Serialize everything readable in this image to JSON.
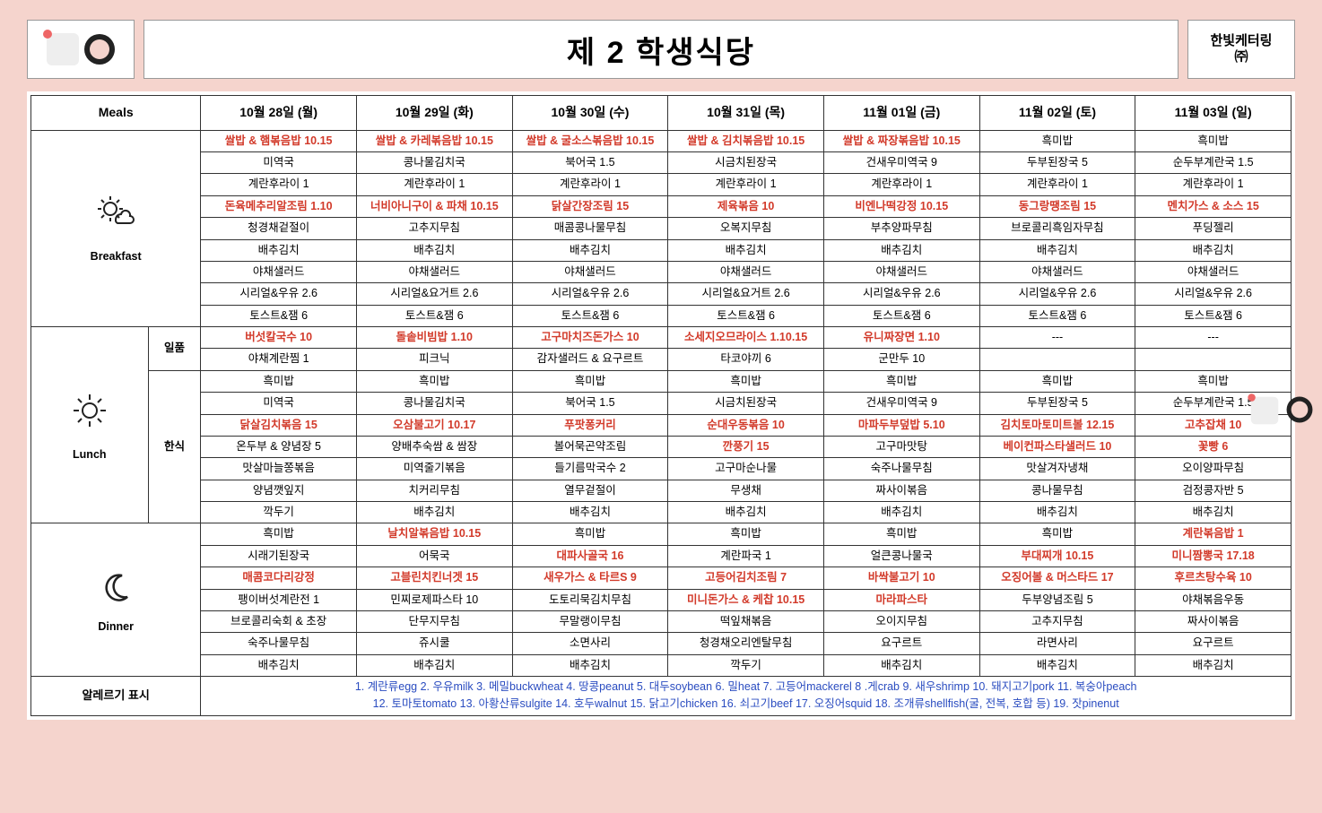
{
  "header": {
    "title": "제 2 학생식당",
    "brand_line1": "한빛케터링",
    "brand_line2": "㈜"
  },
  "columns": {
    "meals": "Meals",
    "days": [
      "10월 28일 (월)",
      "10월 29일 (화)",
      "10월 30일 (수)",
      "10월 31일 (목)",
      "11월 01일 (금)",
      "11월 02일 (토)",
      "11월 03일 (일)"
    ]
  },
  "meal_labels": {
    "breakfast": "Breakfast",
    "lunch": "Lunch",
    "dinner": "Dinner",
    "ilpum": "일품",
    "hansik": "한식",
    "allergy": "알레르기 표시"
  },
  "breakfast": [
    [
      {
        "t": "쌀밥 & 햄볶음밥 10.15",
        "hl": true
      },
      {
        "t": "쌀밥 & 카레볶음밥 10.15",
        "hl": true
      },
      {
        "t": "쌀밥 & 굴소스볶음밥 10.15",
        "hl": true
      },
      {
        "t": "쌀밥 & 김치볶음밥 10.15",
        "hl": true
      },
      {
        "t": "쌀밥 & 짜장볶음밥 10.15",
        "hl": true
      },
      {
        "t": "흑미밥"
      },
      {
        "t": "흑미밥"
      }
    ],
    [
      {
        "t": "미역국"
      },
      {
        "t": "콩나물김치국"
      },
      {
        "t": "북어국 1.5"
      },
      {
        "t": "시금치된장국"
      },
      {
        "t": "건새우미역국 9"
      },
      {
        "t": "두부된장국 5"
      },
      {
        "t": "순두부계란국 1.5"
      }
    ],
    [
      {
        "t": "계란후라이 1"
      },
      {
        "t": "계란후라이 1"
      },
      {
        "t": "계란후라이 1"
      },
      {
        "t": "계란후라이 1"
      },
      {
        "t": "계란후라이 1"
      },
      {
        "t": "계란후라이 1"
      },
      {
        "t": "계란후라이 1"
      }
    ],
    [
      {
        "t": "돈육메추리알조림 1.10",
        "hl": true
      },
      {
        "t": "너비아니구이 & 파채 10.15",
        "hl": true
      },
      {
        "t": "닭살간장조림 15",
        "hl": true
      },
      {
        "t": "제육볶음 10",
        "hl": true
      },
      {
        "t": "비엔나떡강정 10.15",
        "hl": true
      },
      {
        "t": "동그랑땡조림 15",
        "hl": true
      },
      {
        "t": "멘치가스 & 소스 15",
        "hl": true
      }
    ],
    [
      {
        "t": "청경채겉절이"
      },
      {
        "t": "고추지무침"
      },
      {
        "t": "매콤콩나물무침"
      },
      {
        "t": "오복지무침"
      },
      {
        "t": "부추양파무침"
      },
      {
        "t": "브로콜리흑임자무침"
      },
      {
        "t": "푸딩젤리"
      }
    ],
    [
      {
        "t": "배추김치"
      },
      {
        "t": "배추김치"
      },
      {
        "t": "배추김치"
      },
      {
        "t": "배추김치"
      },
      {
        "t": "배추김치"
      },
      {
        "t": "배추김치"
      },
      {
        "t": "배추김치"
      }
    ],
    [
      {
        "t": "야채샐러드"
      },
      {
        "t": "야채샐러드"
      },
      {
        "t": "야채샐러드"
      },
      {
        "t": "야채샐러드"
      },
      {
        "t": "야채샐러드"
      },
      {
        "t": "야채샐러드"
      },
      {
        "t": "야채샐러드"
      }
    ],
    [
      {
        "t": "시리얼&우유 2.6"
      },
      {
        "t": "시리얼&요거트 2.6"
      },
      {
        "t": "시리얼&우유 2.6"
      },
      {
        "t": "시리얼&요거트 2.6"
      },
      {
        "t": "시리얼&우유 2.6"
      },
      {
        "t": "시리얼&우유 2.6"
      },
      {
        "t": "시리얼&우유 2.6"
      }
    ],
    [
      {
        "t": "토스트&잼 6"
      },
      {
        "t": "토스트&잼 6"
      },
      {
        "t": "토스트&잼 6"
      },
      {
        "t": "토스트&잼 6"
      },
      {
        "t": "토스트&잼 6"
      },
      {
        "t": "토스트&잼 6"
      },
      {
        "t": "토스트&잼 6"
      }
    ]
  ],
  "lunch_ilpum": [
    [
      {
        "t": "버섯칼국수 10",
        "hl": true
      },
      {
        "t": "돌솥비빔밥 1.10",
        "hl": true
      },
      {
        "t": "고구마치즈돈가스 10",
        "hl": true
      },
      {
        "t": "소세지오므라이스 1.10.15",
        "hl": true
      },
      {
        "t": "유니짜장면 1.10",
        "hl": true
      },
      {
        "t": "---"
      },
      {
        "t": "---"
      }
    ],
    [
      {
        "t": "야채계란찜 1"
      },
      {
        "t": "피크닉"
      },
      {
        "t": "감자샐러드 & 요구르트"
      },
      {
        "t": "타코야끼 6"
      },
      {
        "t": "군만두 10"
      },
      {
        "t": ""
      },
      {
        "t": ""
      }
    ]
  ],
  "lunch_hansik": [
    [
      {
        "t": "흑미밥"
      },
      {
        "t": "흑미밥"
      },
      {
        "t": "흑미밥"
      },
      {
        "t": "흑미밥"
      },
      {
        "t": "흑미밥"
      },
      {
        "t": "흑미밥"
      },
      {
        "t": "흑미밥"
      }
    ],
    [
      {
        "t": "미역국"
      },
      {
        "t": "콩나물김치국"
      },
      {
        "t": "북어국 1.5"
      },
      {
        "t": "시금치된장국"
      },
      {
        "t": "건새우미역국 9"
      },
      {
        "t": "두부된장국 5"
      },
      {
        "t": "순두부계란국 1.5"
      }
    ],
    [
      {
        "t": "닭살김치볶음 15",
        "hl": true
      },
      {
        "t": "오삼불고기 10.17",
        "hl": true
      },
      {
        "t": "푸팟퐁커리",
        "hl": true
      },
      {
        "t": "순대우동볶음 10",
        "hl": true
      },
      {
        "t": "마파두부덮밥 5.10",
        "hl": true
      },
      {
        "t": "김치토마토미트볼 12.15",
        "hl": true
      },
      {
        "t": "고추잡채 10",
        "hl": true
      }
    ],
    [
      {
        "t": "온두부 & 양념장 5"
      },
      {
        "t": "양배추숙쌈 & 쌈장"
      },
      {
        "t": "볼어묵곤약조림"
      },
      {
        "t": "깐풍기 15",
        "hl": true
      },
      {
        "t": "고구마맛탕"
      },
      {
        "t": "베이컨파스타샐러드 10",
        "hl": true
      },
      {
        "t": "꽃빵 6",
        "hl": true
      }
    ],
    [
      {
        "t": "맛살마늘쫑볶음"
      },
      {
        "t": "미역줄기볶음"
      },
      {
        "t": "들기름막국수 2"
      },
      {
        "t": "고구마순나물"
      },
      {
        "t": "숙주나물무침"
      },
      {
        "t": "맛살겨자냉채"
      },
      {
        "t": "오이양파무침"
      }
    ],
    [
      {
        "t": "양념깻잎지"
      },
      {
        "t": "치커리무침"
      },
      {
        "t": "열무겉절이"
      },
      {
        "t": "무생채"
      },
      {
        "t": "짜사이볶음"
      },
      {
        "t": "콩나물무침"
      },
      {
        "t": "검정콩자반 5"
      }
    ],
    [
      {
        "t": "깍두기"
      },
      {
        "t": "배추김치"
      },
      {
        "t": "배추김치"
      },
      {
        "t": "배추김치"
      },
      {
        "t": "배추김치"
      },
      {
        "t": "배추김치"
      },
      {
        "t": "배추김치"
      }
    ]
  ],
  "dinner": [
    [
      {
        "t": "흑미밥"
      },
      {
        "t": "날치알볶음밥 10.15",
        "hl": true
      },
      {
        "t": "흑미밥"
      },
      {
        "t": "흑미밥"
      },
      {
        "t": "흑미밥"
      },
      {
        "t": "흑미밥"
      },
      {
        "t": "계란볶음밥 1",
        "hl": true
      }
    ],
    [
      {
        "t": "시래기된장국"
      },
      {
        "t": "어묵국"
      },
      {
        "t": "대파사골국 16",
        "hl": true
      },
      {
        "t": "계란파국 1"
      },
      {
        "t": "얼큰콩나물국"
      },
      {
        "t": "부대찌개 10.15",
        "hl": true
      },
      {
        "t": "미니짬뽕국 17.18",
        "hl": true
      }
    ],
    [
      {
        "t": "매콤코다리강정",
        "hl": true
      },
      {
        "t": "고블린치킨너겟 15",
        "hl": true
      },
      {
        "t": "새우가스 & 타르S 9",
        "hl": true
      },
      {
        "t": "고등어김치조림 7",
        "hl": true
      },
      {
        "t": "바싹불고기 10",
        "hl": true
      },
      {
        "t": "오징어볼 & 머스타드 17",
        "hl": true
      },
      {
        "t": "후르츠탕수육 10",
        "hl": true
      }
    ],
    [
      {
        "t": "팽이버섯계란전 1"
      },
      {
        "t": "민찌로제파스타 10"
      },
      {
        "t": "도토리묵김치무침"
      },
      {
        "t": "미니돈가스 & 케찹 10.15",
        "hl": true
      },
      {
        "t": "마라파스타",
        "hl": true
      },
      {
        "t": "두부양념조림 5"
      },
      {
        "t": "야채볶음우동"
      }
    ],
    [
      {
        "t": "브로콜리숙회 & 초장"
      },
      {
        "t": "단무지무침"
      },
      {
        "t": "무말랭이무침"
      },
      {
        "t": "떡잎채볶음"
      },
      {
        "t": "오이지무침"
      },
      {
        "t": "고추지무침"
      },
      {
        "t": "짜사이볶음"
      }
    ],
    [
      {
        "t": "숙주나물무침"
      },
      {
        "t": "쥬시쿨"
      },
      {
        "t": "소면사리"
      },
      {
        "t": "청경채오리엔탈무침"
      },
      {
        "t": "요구르트"
      },
      {
        "t": "라면사리"
      },
      {
        "t": "요구르트"
      }
    ],
    [
      {
        "t": "배추김치"
      },
      {
        "t": "배추김치"
      },
      {
        "t": "배추김치"
      },
      {
        "t": "깍두기"
      },
      {
        "t": "배추김치"
      },
      {
        "t": "배추김치"
      },
      {
        "t": "배추김치"
      }
    ]
  ],
  "allergy": {
    "line1": "1. 계란류egg 2. 우유milk 3. 메밀buckwheat 4. 땅콩peanut 5. 대두soybean 6. 밀heat 7. 고등어mackerel 8 .게crab 9. 새우shrimp 10. 돼지고기pork 11. 복숭아peach",
    "line2": "12. 토마토tomato 13. 아황산류sulgite 14. 호두walnut 15. 닭고기chicken 16. 쇠고기beef 17. 오징어squid 18. 조개류shellfish(굴, 전복, 호합 등) 19. 잣pinenut"
  },
  "icon_colors": {
    "sun": "#222",
    "moon": "#222"
  }
}
